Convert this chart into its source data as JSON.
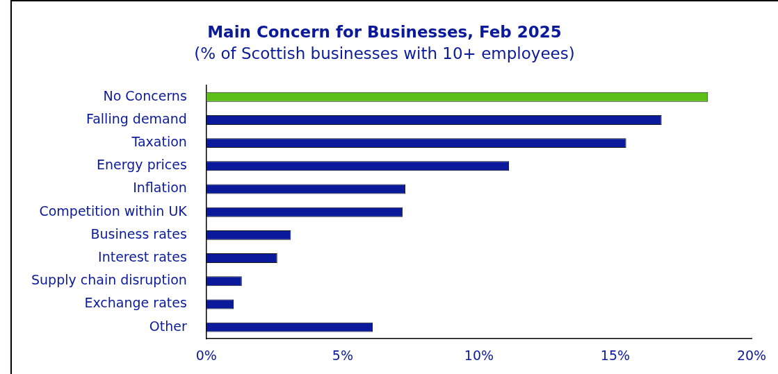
{
  "chart_data": {
    "type": "bar",
    "orientation": "horizontal",
    "title": "Main Concern for Businesses, Feb 2025",
    "subtitle": "(% of Scottish businesses with 10+ employees)",
    "categories": [
      "No Concerns",
      "Falling demand",
      "Taxation",
      "Energy prices",
      "Inflation",
      "Competition within UK",
      "Business rates",
      "Interest rates",
      "Supply chain disruption",
      "Exchange rates",
      "Other"
    ],
    "values": [
      18.4,
      16.7,
      15.4,
      11.1,
      7.3,
      7.2,
      3.1,
      2.6,
      1.3,
      1.0,
      6.1
    ],
    "colors": [
      "#5cbf1a",
      "#0a1a9a",
      "#0a1a9a",
      "#0a1a9a",
      "#0a1a9a",
      "#0a1a9a",
      "#0a1a9a",
      "#0a1a9a",
      "#0a1a9a",
      "#0a1a9a",
      "#0a1a9a"
    ],
    "xlim": [
      0,
      20
    ],
    "xticks": [
      {
        "value": 0,
        "label": "0%"
      },
      {
        "value": 5,
        "label": "5%"
      },
      {
        "value": 10,
        "label": "10%"
      },
      {
        "value": 15,
        "label": "15%"
      },
      {
        "value": 20,
        "label": "20%"
      }
    ],
    "grid": false,
    "legend": false
  }
}
